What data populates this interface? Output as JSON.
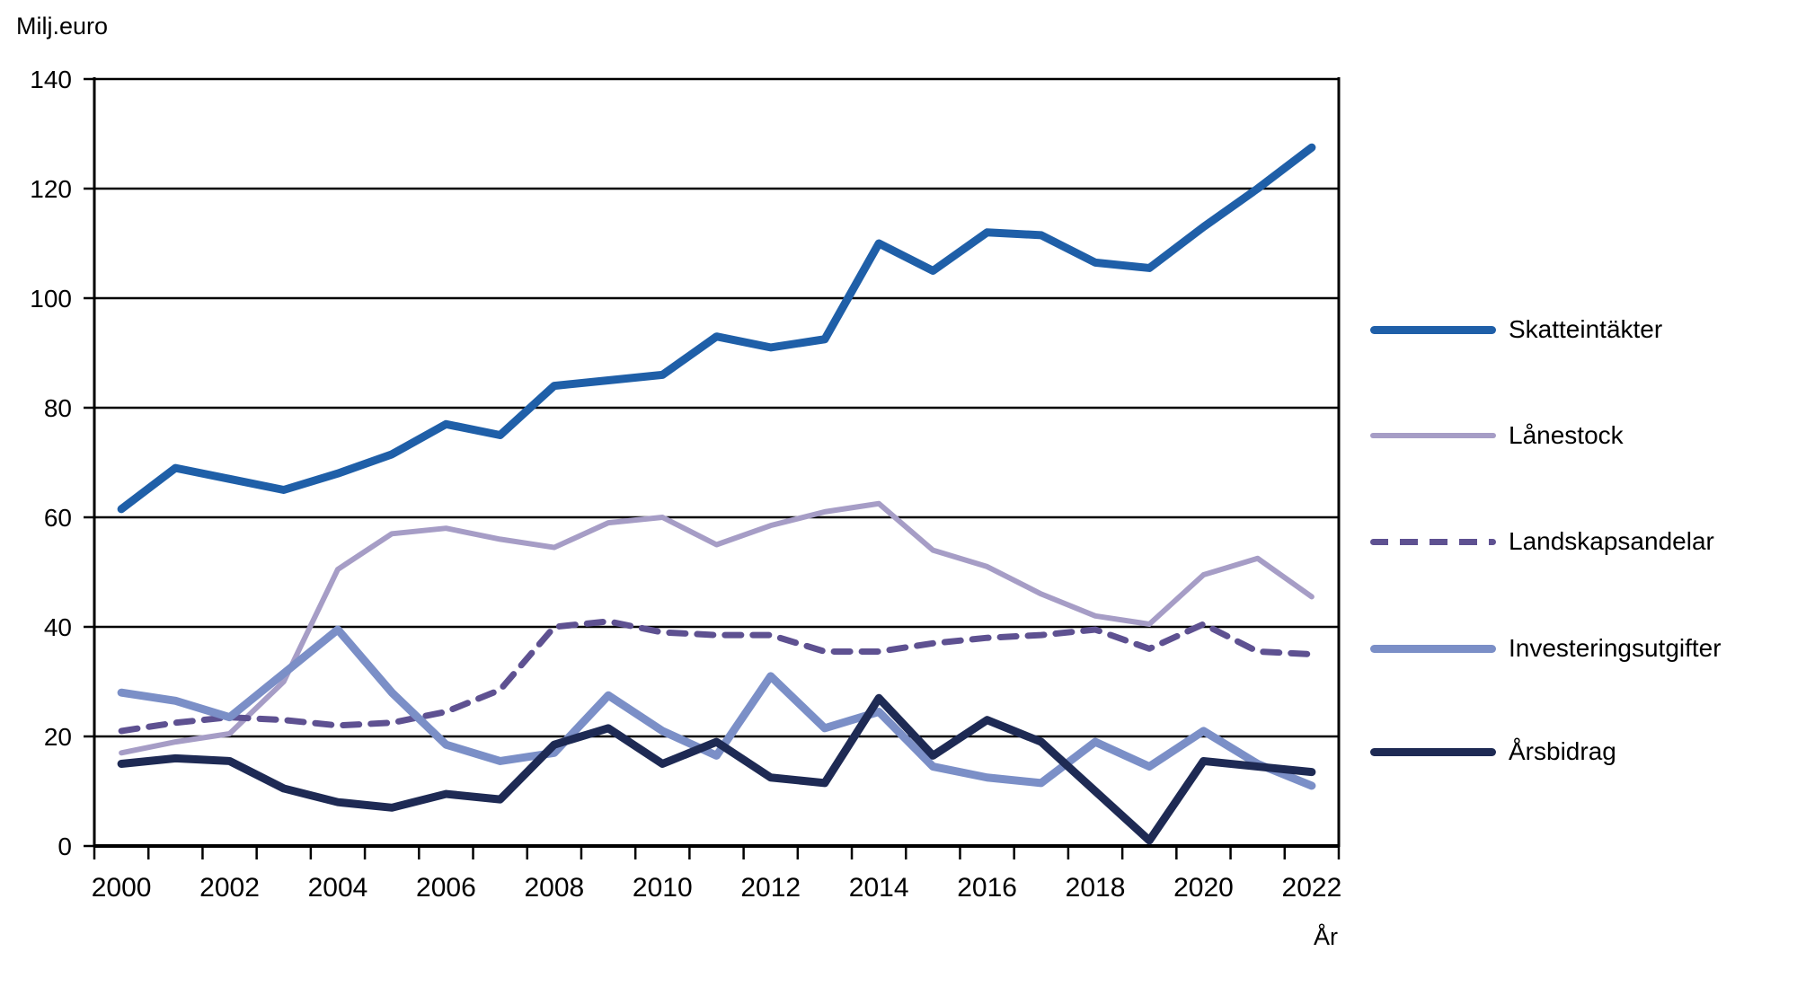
{
  "chart_data": {
    "type": "line",
    "title": "",
    "ylabel": "Milj.euro",
    "xlabel": "År",
    "grid": "horizontal",
    "legend_position": "right",
    "ylim": [
      0,
      140
    ],
    "y_ticks": [
      0,
      20,
      40,
      60,
      80,
      100,
      120,
      140
    ],
    "x": [
      2000,
      2001,
      2002,
      2003,
      2004,
      2005,
      2006,
      2007,
      2008,
      2009,
      2010,
      2011,
      2012,
      2013,
      2014,
      2015,
      2016,
      2017,
      2018,
      2019,
      2020,
      2021,
      2022
    ],
    "x_tick_labels": [
      "2000",
      "2002",
      "2004",
      "2006",
      "2008",
      "2010",
      "2012",
      "2014",
      "2016",
      "2018",
      "2020",
      "2022"
    ],
    "series": [
      {
        "name": "Skatteintäkter",
        "color": "#1f5fa8",
        "stroke_width": 9,
        "dash": null,
        "values": [
          61.5,
          69,
          67,
          65,
          68,
          71.5,
          77,
          75,
          84,
          85,
          86,
          93,
          91,
          92.5,
          110,
          105,
          112,
          111.5,
          106.5,
          105.5,
          113,
          120,
          127.5
        ]
      },
      {
        "name": "Lånestock",
        "color": "#a69dc6",
        "stroke_width": 6,
        "dash": null,
        "values": [
          17,
          19,
          20.5,
          30,
          50.5,
          57,
          58,
          56,
          54.5,
          59,
          60,
          55,
          58.5,
          61,
          62.5,
          54,
          51,
          46,
          42,
          40.5,
          49.5,
          52.5,
          45.5
        ]
      },
      {
        "name": "Landskapsandelar",
        "color": "#5e5191",
        "stroke_width": 7,
        "dash": "18,13",
        "values": [
          21,
          22.5,
          23.5,
          23,
          22,
          22.5,
          24.5,
          28.5,
          40,
          41,
          39,
          38.5,
          38.5,
          35.5,
          35.5,
          37,
          38,
          38.5,
          39.5,
          36,
          40.5,
          35.5,
          35
        ]
      },
      {
        "name": "Investeringsutgifter",
        "color": "#7b8fc7",
        "stroke_width": 9,
        "dash": null,
        "values": [
          28,
          26.5,
          23.5,
          31.5,
          39.5,
          28,
          18.5,
          15.5,
          17,
          27.5,
          21,
          16.5,
          31,
          21.5,
          24.5,
          14.5,
          12.5,
          11.5,
          19,
          14.5,
          21,
          15,
          11
        ]
      },
      {
        "name": "Årsbidrag",
        "color": "#1e2a54",
        "stroke_width": 9,
        "dash": null,
        "values": [
          15,
          16,
          15.5,
          10.5,
          8,
          7,
          9.5,
          8.5,
          18.5,
          21.5,
          15,
          19,
          12.5,
          11.5,
          27,
          16.5,
          23,
          19,
          10,
          1,
          15.5,
          14.5,
          13.5
        ]
      }
    ]
  }
}
